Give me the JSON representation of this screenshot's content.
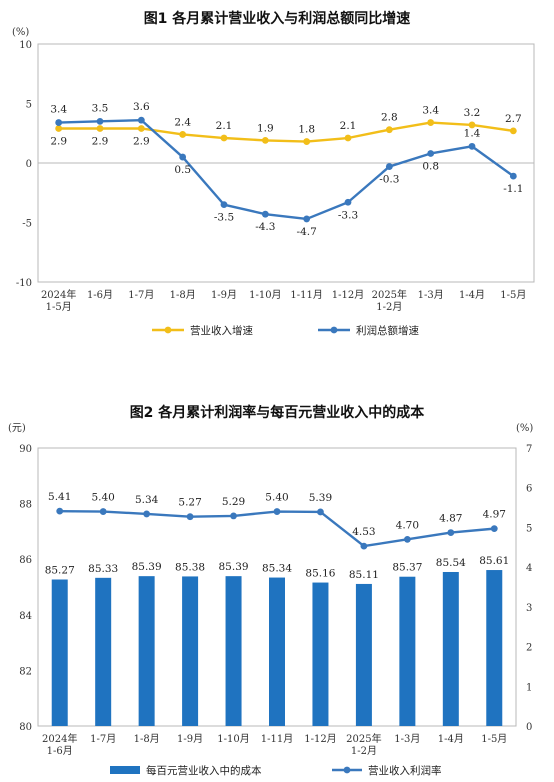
{
  "chart_data": [
    {
      "type": "line",
      "title": "图1 各月累计营业收入与利润总额同比增速",
      "y_unit": "(%)",
      "ylim": [
        -10,
        10
      ],
      "y_ticks": [
        "10",
        "5",
        "0",
        "-5",
        "-10"
      ],
      "categories": [
        [
          "2024年",
          "1-5月"
        ],
        [
          "1-6月"
        ],
        [
          "1-7月"
        ],
        [
          "1-8月"
        ],
        [
          "1-9月"
        ],
        [
          "1-10月"
        ],
        [
          "1-11月"
        ],
        [
          "1-12月"
        ],
        [
          "2025年",
          "1-2月"
        ],
        [
          "1-3月"
        ],
        [
          "1-4月"
        ],
        [
          "1-5月"
        ]
      ],
      "series": [
        {
          "name": "营业收入增速",
          "color": "#f2be19",
          "values": [
            2.9,
            2.9,
            2.9,
            2.4,
            2.1,
            1.9,
            1.8,
            2.1,
            2.8,
            3.4,
            3.2,
            2.7
          ],
          "labels": [
            "2.9",
            "2.9",
            "2.9",
            "2.4",
            "2.1",
            "1.9",
            "1.8",
            "2.1",
            "2.8",
            "3.4",
            "3.2",
            "2.7"
          ]
        },
        {
          "name": "利润总额增速",
          "color": "#3a78bd",
          "values": [
            3.4,
            3.5,
            3.6,
            0.5,
            -3.5,
            -4.3,
            -4.7,
            -3.3,
            -0.3,
            0.8,
            1.4,
            -1.1
          ],
          "labels": [
            "3.4",
            "3.5",
            "3.6",
            "0.5",
            "-3.5",
            "-4.3",
            "-4.7",
            "-3.3",
            "-0.3",
            "0.8",
            "1.4",
            "-1.1"
          ]
        }
      ],
      "grid": false,
      "legend": "bottom"
    },
    {
      "type": "bar",
      "title": "图2 各月累计利润率与每百元营业收入中的成本",
      "y_unit_left": "(元)",
      "y_unit_right": "(%)",
      "ylim_left": [
        80,
        90
      ],
      "ylim_right": [
        0,
        7
      ],
      "y_ticks_left": [
        "90",
        "88",
        "86",
        "84",
        "82",
        "80"
      ],
      "y_ticks_right": [
        "7",
        "6",
        "5",
        "4",
        "3",
        "2",
        "1",
        "0"
      ],
      "categories": [
        [
          "2024年",
          "1-6月"
        ],
        [
          "1-7月"
        ],
        [
          "1-8月"
        ],
        [
          "1-9月"
        ],
        [
          "1-10月"
        ],
        [
          "1-11月"
        ],
        [
          "1-12月"
        ],
        [
          "2025年",
          "1-2月"
        ],
        [
          "1-3月"
        ],
        [
          "1-4月"
        ],
        [
          "1-5月"
        ]
      ],
      "series": [
        {
          "name": "每百元营业收入中的成本",
          "type": "bar",
          "axis": "left",
          "color": "#1f73c0",
          "values": [
            85.27,
            85.33,
            85.39,
            85.38,
            85.39,
            85.34,
            85.16,
            85.11,
            85.37,
            85.54,
            85.61
          ],
          "labels": [
            "85.27",
            "85.33",
            "85.39",
            "85.38",
            "85.39",
            "85.34",
            "85.16",
            "85.11",
            "85.37",
            "85.54",
            "85.61"
          ]
        },
        {
          "name": "营业收入利润率",
          "type": "line",
          "axis": "right",
          "color": "#3a78bd",
          "values": [
            5.41,
            5.4,
            5.34,
            5.27,
            5.29,
            5.4,
            5.39,
            4.53,
            4.7,
            4.87,
            4.97
          ],
          "labels": [
            "5.41",
            "5.40",
            "5.34",
            "5.27",
            "5.29",
            "5.40",
            "5.39",
            "4.53",
            "4.70",
            "4.87",
            "4.97"
          ]
        }
      ],
      "grid": false,
      "legend": "bottom"
    }
  ]
}
